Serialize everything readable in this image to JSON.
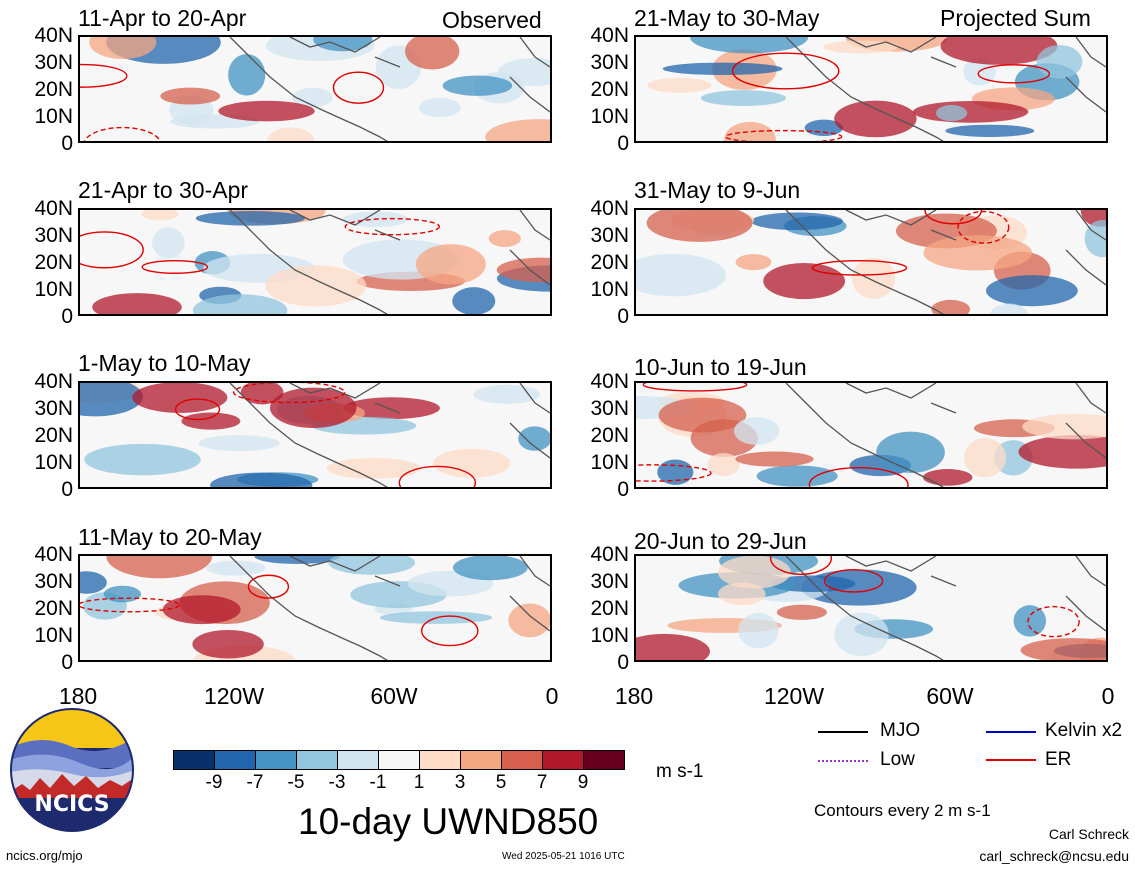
{
  "panels_left": [
    {
      "title": "11-Apr to 20-Apr",
      "corner": "Observed"
    },
    {
      "title": "21-Apr to 30-Apr",
      "corner": ""
    },
    {
      "title": "1-May to 10-May",
      "corner": ""
    },
    {
      "title": "11-May to 20-May",
      "corner": ""
    }
  ],
  "panels_right": [
    {
      "title": "21-May to 30-May",
      "corner": "Projected Sum"
    },
    {
      "title": "31-May to 9-Jun",
      "corner": ""
    },
    {
      "title": "10-Jun to 19-Jun",
      "corner": ""
    },
    {
      "title": "20-Jun to 29-Jun",
      "corner": ""
    }
  ],
  "lat_labels": [
    "40N",
    "30N",
    "20N",
    "10N",
    "0"
  ],
  "lon_labels": [
    "180",
    "120W",
    "60W",
    "0"
  ],
  "colorbar": {
    "colors": [
      "#08306b",
      "#2166ac",
      "#4393c3",
      "#92c5de",
      "#d1e5f0",
      "#f7f7f7",
      "#fddbc7",
      "#f4a582",
      "#d6604d",
      "#b2182b",
      "#67001f"
    ],
    "ticks": [
      "-9",
      "-7",
      "-5",
      "-3",
      "-1",
      "1",
      "3",
      "5",
      "7",
      "9"
    ],
    "units": "m s-1"
  },
  "main_title": "10-day UWND850",
  "legend": {
    "mjo": {
      "label": "MJO",
      "color": "#000000"
    },
    "kelvin": {
      "label": "Kelvin x2",
      "color": "#0000cc"
    },
    "low": {
      "label": "Low",
      "color": "#9932cc"
    },
    "er": {
      "label": "ER",
      "color": "#e00000"
    }
  },
  "contour_note": "Contours every 2 m s-1",
  "author_name": "Carl Schreck",
  "author_email": "carl_schreck@ncsu.edu",
  "site_url": "ncics.org/mjo",
  "timestamp": "Wed 2025-05-21 1016 UTC",
  "logo_text": "NCICS"
}
